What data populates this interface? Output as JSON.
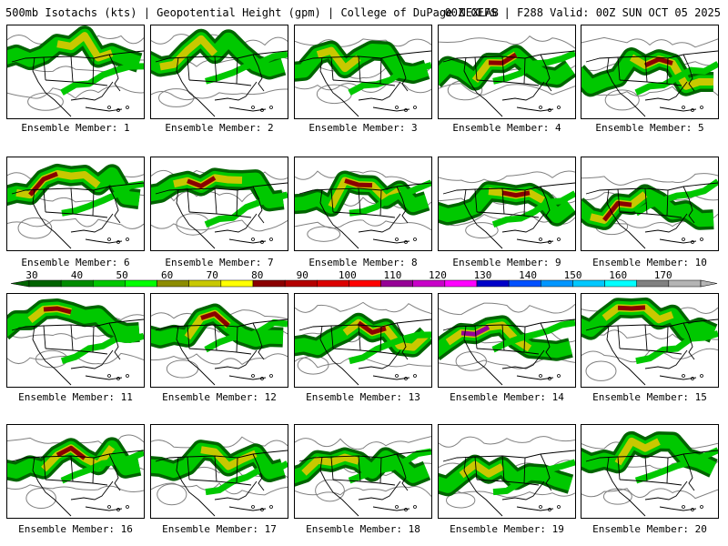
{
  "header": {
    "title_left": "500mb Isotachs (kts) | Geopotential Height (gpm) | College of DuPage NEXLAB",
    "title_right": "00Z GEFS | F288 Valid: 00Z SUN OCT 05 2025"
  },
  "colorbar": {
    "labels": [
      "30",
      "40",
      "50",
      "60",
      "70",
      "80",
      "90",
      "100",
      "110",
      "120",
      "130",
      "140",
      "150",
      "160",
      "170"
    ],
    "colors": [
      "#006400",
      "#008c00",
      "#00c800",
      "#00ff00",
      "#8c8c00",
      "#c8c800",
      "#ffff00",
      "#8b0000",
      "#b40000",
      "#dc0000",
      "#ff0000",
      "#960096",
      "#c800c8",
      "#ff00ff",
      "#0000c8",
      "#0050ff",
      "#0096ff",
      "#00c8ff",
      "#00ffff",
      "#808080",
      "#b4b4b4"
    ]
  },
  "map_colors": {
    "land_line": "#000000",
    "height_contour": "#808080",
    "jet_green_dark": "#006400",
    "jet_green": "#00c800",
    "jet_yellow": "#c8c800",
    "jet_red": "#8b0000",
    "jet_purple": "#960096"
  },
  "members": [
    {
      "label": "Ensemble Member: 1"
    },
    {
      "label": "Ensemble Member: 2"
    },
    {
      "label": "Ensemble Member: 3"
    },
    {
      "label": "Ensemble Member: 4"
    },
    {
      "label": "Ensemble Member: 5"
    },
    {
      "label": "Ensemble Member: 6"
    },
    {
      "label": "Ensemble Member: 7"
    },
    {
      "label": "Ensemble Member: 8"
    },
    {
      "label": "Ensemble Member: 9"
    },
    {
      "label": "Ensemble Member: 10"
    },
    {
      "label": "Ensemble Member: 11"
    },
    {
      "label": "Ensemble Member: 12"
    },
    {
      "label": "Ensemble Member: 13"
    },
    {
      "label": "Ensemble Member: 14"
    },
    {
      "label": "Ensemble Member: 15"
    },
    {
      "label": "Ensemble Member: 16"
    },
    {
      "label": "Ensemble Member: 17"
    },
    {
      "label": "Ensemble Member: 18"
    },
    {
      "label": "Ensemble Member: 19"
    },
    {
      "label": "Ensemble Member: 20"
    }
  ]
}
